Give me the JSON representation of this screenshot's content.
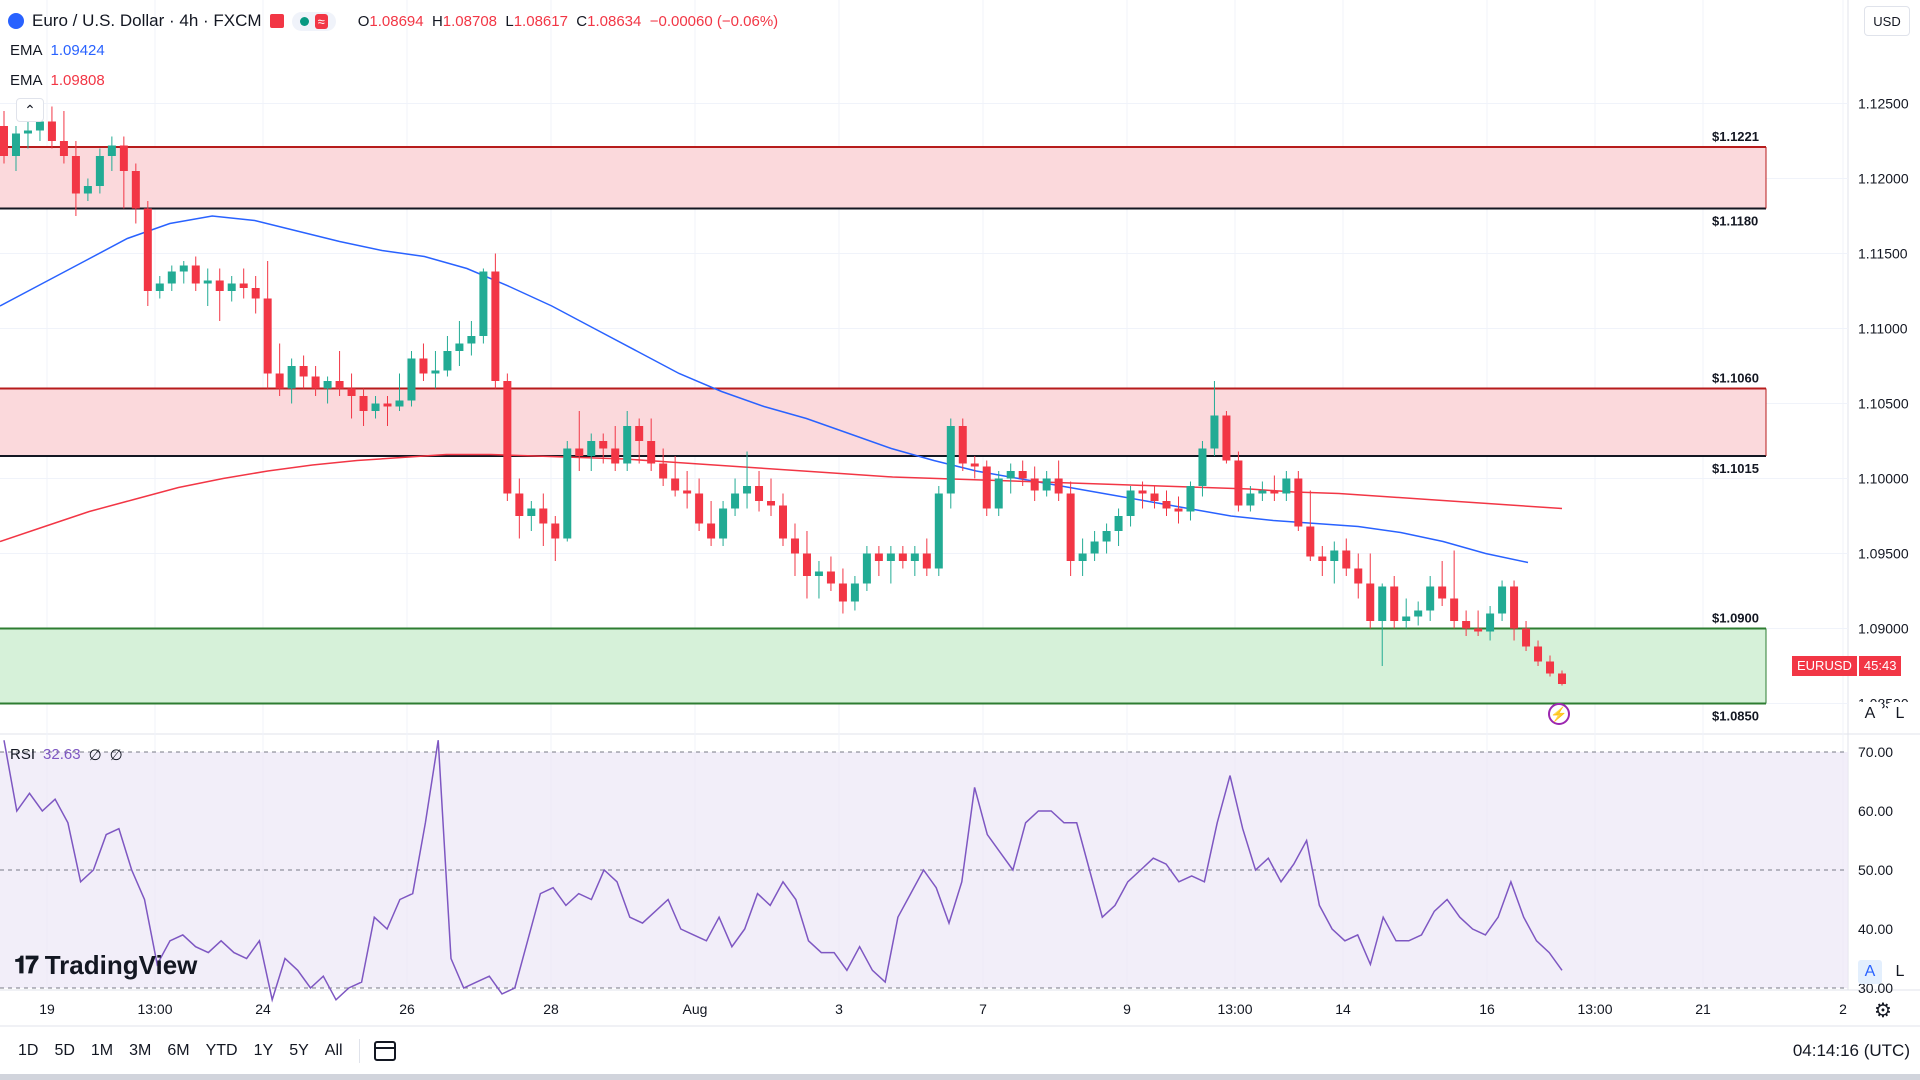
{
  "header": {
    "title": "Euro / U.S. Dollar · 4h · FXCM",
    "ohlc": {
      "o_label": "O",
      "o": "1.08694",
      "h_label": "H",
      "h": "1.08708",
      "l_label": "L",
      "l": "1.08617",
      "c_label": "C",
      "c": "1.08634",
      "change": "−0.00060 (−0.06%)"
    }
  },
  "indicators": [
    {
      "name": "EMA",
      "value": "1.09424",
      "color": "#2962ff"
    },
    {
      "name": "EMA",
      "value": "1.09808",
      "color": "#f23645"
    }
  ],
  "currency_button": "USD",
  "price_tag": {
    "symbol": "EURUSD",
    "countdown": "45:43"
  },
  "zones": [
    {
      "top_label": "$1.1221",
      "bottom_label": "$1.1180",
      "top": 1.1221,
      "bottom": 1.118,
      "color": "#f23645"
    },
    {
      "top_label": "$1.1060",
      "bottom_label": "$1.1015",
      "top": 1.106,
      "bottom": 1.1015,
      "color": "#f23645"
    },
    {
      "top_label": "$1.0900",
      "bottom_label": "$1.0850",
      "top": 1.09,
      "bottom": 1.085,
      "color": "#089981"
    }
  ],
  "rsi": {
    "label": "RSI",
    "value": "32.63",
    "extra1": "∅",
    "extra2": "∅",
    "ticks": [
      "70.00",
      "60.00",
      "50.00",
      "40.00",
      "30.00"
    ]
  },
  "scale_buttons": {
    "a": "A",
    "l": "L"
  },
  "logo_text": "TradingView",
  "timeframes": [
    "1D",
    "5D",
    "1M",
    "3M",
    "6M",
    "YTD",
    "1Y",
    "5Y",
    "All"
  ],
  "clock": "04:14:16 (UTC)",
  "chart_data": {
    "type": "candlestick",
    "y_axis_ticks": [
      "1.12500",
      "1.12000",
      "1.11500",
      "1.11000",
      "1.10500",
      "1.10000",
      "1.09500",
      "1.09000",
      "1.08500"
    ],
    "ylim": [
      1.0835,
      1.1295
    ],
    "x_ticks": [
      "19",
      "13:00",
      "24",
      "26",
      "28",
      "Aug",
      "3",
      "7",
      "9",
      "13:00",
      "14",
      "16",
      "13:00",
      "21",
      "2"
    ],
    "candles": [
      [
        1.1235,
        1.1245,
        1.121,
        1.1215
      ],
      [
        1.1215,
        1.1235,
        1.1205,
        1.123
      ],
      [
        1.123,
        1.124,
        1.122,
        1.1232
      ],
      [
        1.1232,
        1.1245,
        1.1225,
        1.1238
      ],
      [
        1.1238,
        1.1248,
        1.122,
        1.1225
      ],
      [
        1.1225,
        1.1245,
        1.121,
        1.1215
      ],
      [
        1.1215,
        1.1225,
        1.1175,
        1.119
      ],
      [
        1.119,
        1.12,
        1.1185,
        1.1195
      ],
      [
        1.1195,
        1.122,
        1.119,
        1.1215
      ],
      [
        1.1215,
        1.1228,
        1.1205,
        1.1222
      ],
      [
        1.1222,
        1.1228,
        1.118,
        1.1205
      ],
      [
        1.1205,
        1.121,
        1.117,
        1.118
      ],
      [
        1.118,
        1.1185,
        1.1115,
        1.1125
      ],
      [
        1.1125,
        1.1135,
        1.112,
        1.113
      ],
      [
        1.113,
        1.1142,
        1.1125,
        1.1138
      ],
      [
        1.1138,
        1.1145,
        1.113,
        1.1142
      ],
      [
        1.1142,
        1.1148,
        1.1125,
        1.113
      ],
      [
        1.113,
        1.114,
        1.1115,
        1.1132
      ],
      [
        1.1132,
        1.114,
        1.1105,
        1.1125
      ],
      [
        1.1125,
        1.1135,
        1.1118,
        1.113
      ],
      [
        1.113,
        1.114,
        1.112,
        1.1127
      ],
      [
        1.1127,
        1.1135,
        1.111,
        1.112
      ],
      [
        1.112,
        1.1145,
        1.106,
        1.107
      ],
      [
        1.107,
        1.109,
        1.1055,
        1.106
      ],
      [
        1.106,
        1.108,
        1.105,
        1.1075
      ],
      [
        1.1075,
        1.1082,
        1.106,
        1.1068
      ],
      [
        1.1068,
        1.1075,
        1.1055,
        1.106
      ],
      [
        1.106,
        1.1068,
        1.105,
        1.1065
      ],
      [
        1.1065,
        1.1085,
        1.1055,
        1.106
      ],
      [
        1.106,
        1.107,
        1.104,
        1.1055
      ],
      [
        1.1055,
        1.106,
        1.1035,
        1.1045
      ],
      [
        1.1045,
        1.1055,
        1.104,
        1.105
      ],
      [
        1.105,
        1.1055,
        1.1035,
        1.1048
      ],
      [
        1.1048,
        1.107,
        1.1045,
        1.1052
      ],
      [
        1.1052,
        1.1085,
        1.1048,
        1.108
      ],
      [
        1.108,
        1.109,
        1.1065,
        1.107
      ],
      [
        1.107,
        1.1085,
        1.106,
        1.1072
      ],
      [
        1.1072,
        1.1095,
        1.1068,
        1.1085
      ],
      [
        1.1085,
        1.1105,
        1.1075,
        1.109
      ],
      [
        1.109,
        1.1105,
        1.1082,
        1.1095
      ],
      [
        1.1095,
        1.114,
        1.109,
        1.1138
      ],
      [
        1.1138,
        1.115,
        1.106,
        1.1065
      ],
      [
        1.1065,
        1.107,
        1.0985,
        1.099
      ],
      [
        1.099,
        1.1,
        1.096,
        1.0975
      ],
      [
        1.0975,
        1.0985,
        1.0965,
        1.098
      ],
      [
        1.098,
        1.099,
        1.0955,
        1.097
      ],
      [
        1.097,
        1.0975,
        1.0945,
        1.096
      ],
      [
        1.096,
        1.1025,
        1.0958,
        1.102
      ],
      [
        1.102,
        1.1045,
        1.1005,
        1.1015
      ],
      [
        1.1015,
        1.103,
        1.1005,
        1.1025
      ],
      [
        1.1025,
        1.103,
        1.101,
        1.102
      ],
      [
        1.102,
        1.1035,
        1.1005,
        1.101
      ],
      [
        1.101,
        1.1045,
        1.1005,
        1.1035
      ],
      [
        1.1035,
        1.104,
        1.101,
        1.1025
      ],
      [
        1.1025,
        1.104,
        1.1005,
        1.101
      ],
      [
        1.101,
        1.102,
        1.0995,
        1.1
      ],
      [
        1.1,
        1.1015,
        1.0988,
        1.0992
      ],
      [
        1.0992,
        1.1005,
        1.098,
        1.099
      ],
      [
        1.099,
        1.1,
        1.0965,
        1.097
      ],
      [
        1.097,
        1.0985,
        1.0955,
        1.096
      ],
      [
        1.096,
        1.0985,
        1.0955,
        1.098
      ],
      [
        1.098,
        1.1,
        1.0975,
        1.099
      ],
      [
        1.099,
        1.1018,
        1.098,
        1.0995
      ],
      [
        1.0995,
        1.1005,
        1.0978,
        1.0985
      ],
      [
        1.0985,
        1.1,
        1.0975,
        1.0982
      ],
      [
        1.0982,
        1.099,
        1.0955,
        1.096
      ],
      [
        1.096,
        1.097,
        1.0935,
        1.095
      ],
      [
        1.095,
        1.0965,
        1.092,
        1.0935
      ],
      [
        1.0935,
        1.0945,
        1.092,
        1.0938
      ],
      [
        1.0938,
        1.0948,
        1.0925,
        1.093
      ],
      [
        1.093,
        1.094,
        1.091,
        1.0918
      ],
      [
        1.0918,
        1.0935,
        1.0912,
        1.093
      ],
      [
        1.093,
        1.0955,
        1.0925,
        1.095
      ],
      [
        1.095,
        1.0955,
        1.0935,
        1.0945
      ],
      [
        1.0945,
        1.0955,
        1.093,
        1.095
      ],
      [
        1.095,
        1.0955,
        1.094,
        1.0945
      ],
      [
        1.0945,
        1.0955,
        1.0935,
        1.095
      ],
      [
        1.095,
        1.096,
        1.0935,
        1.094
      ],
      [
        1.094,
        1.0995,
        1.0935,
        1.099
      ],
      [
        1.099,
        1.104,
        1.098,
        1.1035
      ],
      [
        1.1035,
        1.104,
        1.1005,
        1.101
      ],
      [
        1.101,
        1.1015,
        1.1,
        1.1008
      ],
      [
        1.1008,
        1.1012,
        1.0975,
        1.098
      ],
      [
        1.098,
        1.1005,
        1.0975,
        1.1
      ],
      [
        1.1,
        1.101,
        1.099,
        1.1005
      ],
      [
        1.1005,
        1.1012,
        1.0995,
        1.1
      ],
      [
        1.1,
        1.1008,
        1.0985,
        1.0992
      ],
      [
        1.0992,
        1.1005,
        1.0988,
        1.1
      ],
      [
        1.1,
        1.1012,
        1.0985,
        1.099
      ],
      [
        1.099,
        1.0998,
        1.0935,
        1.0945
      ],
      [
        1.0945,
        1.096,
        1.0935,
        1.095
      ],
      [
        1.095,
        1.0965,
        1.0945,
        1.0958
      ],
      [
        1.0958,
        1.097,
        1.095,
        1.0965
      ],
      [
        1.0965,
        1.098,
        1.0955,
        1.0975
      ],
      [
        1.0975,
        1.0995,
        1.0968,
        1.0992
      ],
      [
        1.0992,
        1.0998,
        1.098,
        1.099
      ],
      [
        1.099,
        1.0995,
        1.098,
        1.0985
      ],
      [
        1.0985,
        1.0992,
        1.0975,
        1.098
      ],
      [
        1.098,
        1.0988,
        1.097,
        1.0978
      ],
      [
        1.0978,
        1.0998,
        1.0972,
        1.0995
      ],
      [
        1.0995,
        1.1025,
        1.0988,
        1.102
      ],
      [
        1.102,
        1.1065,
        1.1015,
        1.1042
      ],
      [
        1.1042,
        1.1045,
        1.101,
        1.1012
      ],
      [
        1.1012,
        1.1018,
        1.0978,
        1.0982
      ],
      [
        1.0982,
        1.0995,
        1.0978,
        1.099
      ],
      [
        1.099,
        1.0998,
        1.0985,
        1.0992
      ],
      [
        1.0992,
        1.1002,
        1.0985,
        1.099
      ],
      [
        1.099,
        1.1005,
        1.0985,
        1.1
      ],
      [
        1.1,
        1.1005,
        1.0965,
        1.0968
      ],
      [
        1.0968,
        1.0992,
        1.0945,
        1.0948
      ],
      [
        1.0948,
        1.0955,
        1.0935,
        1.0945
      ],
      [
        1.0945,
        1.0958,
        1.093,
        1.0952
      ],
      [
        1.0952,
        1.096,
        1.0935,
        1.094
      ],
      [
        1.094,
        1.095,
        1.092,
        1.093
      ],
      [
        1.093,
        1.095,
        1.09,
        1.0905
      ],
      [
        1.0905,
        1.093,
        1.0875,
        1.0928
      ],
      [
        1.0928,
        1.0935,
        1.09,
        1.0905
      ],
      [
        1.0905,
        1.092,
        1.09,
        1.0908
      ],
      [
        1.0908,
        1.0918,
        1.0902,
        1.0912
      ],
      [
        1.0912,
        1.0935,
        1.0905,
        1.0928
      ],
      [
        1.0928,
        1.0945,
        1.0915,
        1.092
      ],
      [
        1.092,
        1.0952,
        1.09,
        1.0905
      ],
      [
        1.0905,
        1.0912,
        1.0895,
        1.09
      ],
      [
        1.09,
        1.0912,
        1.0895,
        1.0898
      ],
      [
        1.0898,
        1.0915,
        1.0892,
        1.091
      ],
      [
        1.091,
        1.0932,
        1.0905,
        1.0928
      ],
      [
        1.0928,
        1.0932,
        1.0892,
        1.09
      ],
      [
        1.09,
        1.0905,
        1.0885,
        1.0888
      ],
      [
        1.0888,
        1.0892,
        1.0875,
        1.0878
      ],
      [
        1.0878,
        1.0882,
        1.0868,
        1.087
      ],
      [
        1.087,
        1.0872,
        1.0862,
        1.0863
      ]
    ],
    "series": [
      {
        "name": "EMA",
        "color": "#2962ff",
        "values": [
          1.1115,
          1.113,
          1.1145,
          1.116,
          1.117,
          1.1175,
          1.1172,
          1.1165,
          1.1158,
          1.1152,
          1.1148,
          1.114,
          1.1128,
          1.1115,
          1.11,
          1.1085,
          1.107,
          1.1058,
          1.1048,
          1.104,
          1.103,
          1.102,
          1.1012,
          1.1005,
          1.1,
          1.0995,
          1.099,
          1.0985,
          1.098,
          1.0975,
          1.0972,
          1.097,
          1.0968,
          1.0964,
          1.0958,
          1.095,
          1.0944
        ]
      },
      {
        "name": "EMA",
        "color": "#f23645",
        "values": [
          1.0958,
          1.0968,
          1.0978,
          1.0986,
          1.0994,
          1.1,
          1.1005,
          1.1009,
          1.1012,
          1.1014,
          1.1016,
          1.1016,
          1.1015,
          1.1014,
          1.1013,
          1.1011,
          1.1009,
          1.1007,
          1.1005,
          1.1003,
          1.1001,
          1.1,
          1.0999,
          1.0998,
          1.0997,
          1.0996,
          1.0995,
          1.0994,
          1.0993,
          1.0991,
          1.099,
          1.0988,
          1.0986,
          1.0984,
          1.0982,
          1.098
        ]
      },
      {
        "name": "RSI",
        "color": "#7e57c2",
        "ylim": [
          30,
          70
        ],
        "values": [
          72,
          60,
          63,
          60,
          62,
          58,
          48,
          50,
          56,
          57,
          50,
          45,
          34,
          38,
          39,
          37,
          36,
          38,
          36,
          35,
          38,
          28,
          35,
          33,
          30,
          32,
          28,
          30,
          31,
          42,
          40,
          45,
          46,
          58,
          72,
          35,
          30,
          31,
          32,
          29,
          30,
          38,
          46,
          47,
          44,
          46,
          45,
          50,
          48,
          42,
          41,
          43,
          45,
          40,
          39,
          38,
          42,
          37,
          40,
          46,
          44,
          48,
          45,
          38,
          36,
          36,
          33,
          37,
          33,
          31,
          42,
          46,
          50,
          47,
          41,
          48,
          64,
          56,
          53,
          50,
          58,
          60,
          60,
          58,
          58,
          50,
          42,
          44,
          48,
          50,
          52,
          51,
          48,
          49,
          48,
          58,
          66,
          57,
          50,
          52,
          48,
          51,
          55,
          44,
          40,
          38,
          39,
          34,
          42,
          38,
          38,
          39,
          43,
          45,
          42,
          40,
          39,
          42,
          48,
          42,
          38,
          36,
          33
        ]
      }
    ]
  }
}
